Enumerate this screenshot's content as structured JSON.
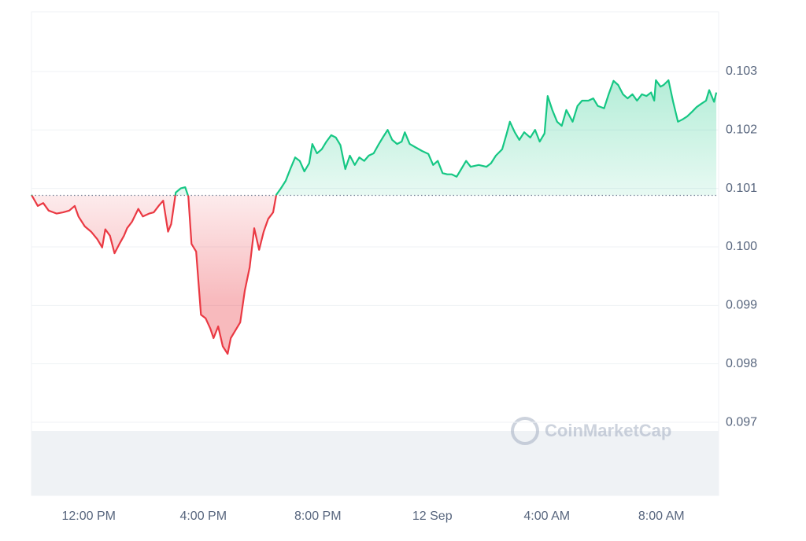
{
  "chart_data": {
    "type": "line",
    "watermark": "CoinMarketCap",
    "up_color": "#16c784",
    "down_color": "#ea3943",
    "baseline": 0.10088,
    "grid": true,
    "xlim": [
      10,
      34
    ],
    "xticks": [
      {
        "value": 12,
        "label": "12:00 PM"
      },
      {
        "value": 16,
        "label": "4:00 PM"
      },
      {
        "value": 20,
        "label": "8:00 PM"
      },
      {
        "value": 24,
        "label": "12 Sep"
      },
      {
        "value": 28,
        "label": "4:00 AM"
      },
      {
        "value": 32,
        "label": "8:00 AM"
      }
    ],
    "ylim": [
      0.09575,
      0.10402
    ],
    "yticks": [
      0.097,
      0.098,
      0.099,
      {
        "value": 0.1,
        "label": "0.100"
      },
      0.101,
      0.102,
      0.103
    ],
    "x": [
      10.0,
      10.22,
      10.41,
      10.6,
      10.88,
      11.1,
      11.32,
      11.51,
      11.64,
      11.86,
      12.08,
      12.3,
      12.47,
      12.58,
      12.74,
      12.9,
      13.07,
      13.23,
      13.34,
      13.51,
      13.73,
      13.89,
      14.11,
      14.27,
      14.44,
      14.6,
      14.77,
      14.88,
      15.04,
      15.21,
      15.37,
      15.48,
      15.59,
      15.75,
      15.92,
      16.08,
      16.25,
      16.36,
      16.52,
      16.68,
      16.85,
      16.96,
      17.12,
      17.29,
      17.45,
      17.62,
      17.78,
      17.95,
      18.11,
      18.27,
      18.44,
      18.55,
      18.71,
      18.88,
      19.04,
      19.21,
      19.37,
      19.53,
      19.7,
      19.81,
      19.97,
      20.14,
      20.3,
      20.47,
      20.63,
      20.79,
      20.96,
      21.12,
      21.29,
      21.45,
      21.62,
      21.78,
      21.95,
      22.11,
      22.27,
      22.44,
      22.6,
      22.77,
      22.93,
      23.04,
      23.21,
      23.42,
      23.64,
      23.86,
      24.03,
      24.19,
      24.36,
      24.52,
      24.68,
      24.85,
      25.01,
      25.18,
      25.34,
      25.62,
      25.89,
      26.05,
      26.22,
      26.44,
      26.6,
      26.71,
      26.88,
      27.04,
      27.21,
      27.42,
      27.59,
      27.75,
      27.92,
      28.03,
      28.19,
      28.36,
      28.52,
      28.68,
      28.9,
      29.07,
      29.23,
      29.45,
      29.62,
      29.78,
      30.0,
      30.16,
      30.33,
      30.49,
      30.66,
      30.82,
      30.99,
      31.15,
      31.32,
      31.48,
      31.64,
      31.75,
      31.81,
      31.97,
      32.08,
      32.25,
      32.41,
      32.58,
      32.74,
      32.9,
      33.07,
      33.23,
      33.4,
      33.56,
      33.67,
      33.84,
      33.92
    ],
    "values": [
      0.10089,
      0.1007,
      0.10075,
      0.10062,
      0.10057,
      0.10059,
      0.10062,
      0.1007,
      0.10052,
      0.10035,
      0.10026,
      0.10013,
      0.09999,
      0.1003,
      0.10019,
      0.09989,
      0.10005,
      0.10019,
      0.10032,
      0.10043,
      0.10065,
      0.10052,
      0.10057,
      0.10059,
      0.1007,
      0.10079,
      0.10026,
      0.10039,
      0.10093,
      0.101,
      0.10102,
      0.10086,
      0.10005,
      0.09992,
      0.09884,
      0.09878,
      0.0986,
      0.09844,
      0.09864,
      0.0983,
      0.09817,
      0.09844,
      0.09857,
      0.09871,
      0.09925,
      0.09965,
      0.10032,
      0.09995,
      0.10026,
      0.10048,
      0.10059,
      0.10089,
      0.101,
      0.10113,
      0.10133,
      0.10153,
      0.10147,
      0.10129,
      0.10143,
      0.10176,
      0.1016,
      0.10167,
      0.1018,
      0.10191,
      0.10187,
      0.10174,
      0.10133,
      0.10156,
      0.1014,
      0.10153,
      0.10147,
      0.10156,
      0.1016,
      0.10174,
      0.10187,
      0.102,
      0.10183,
      0.10176,
      0.1018,
      0.10196,
      0.10176,
      0.1017,
      0.10164,
      0.10159,
      0.1014,
      0.10147,
      0.10126,
      0.10124,
      0.10124,
      0.1012,
      0.10133,
      0.10147,
      0.10137,
      0.1014,
      0.10137,
      0.10143,
      0.10156,
      0.10167,
      0.10194,
      0.10214,
      0.10196,
      0.10183,
      0.10196,
      0.10187,
      0.102,
      0.1018,
      0.10194,
      0.10258,
      0.10234,
      0.10214,
      0.10207,
      0.10234,
      0.10214,
      0.10241,
      0.1025,
      0.1025,
      0.10254,
      0.10241,
      0.10237,
      0.10261,
      0.10284,
      0.10277,
      0.10261,
      0.10254,
      0.10261,
      0.1025,
      0.10261,
      0.10258,
      0.10264,
      0.1025,
      0.10285,
      0.10274,
      0.10277,
      0.10285,
      0.10248,
      0.10214,
      0.10218,
      0.10223,
      0.10231,
      0.10239,
      0.10245,
      0.1025,
      0.10268,
      0.10248,
      0.10264
    ]
  }
}
